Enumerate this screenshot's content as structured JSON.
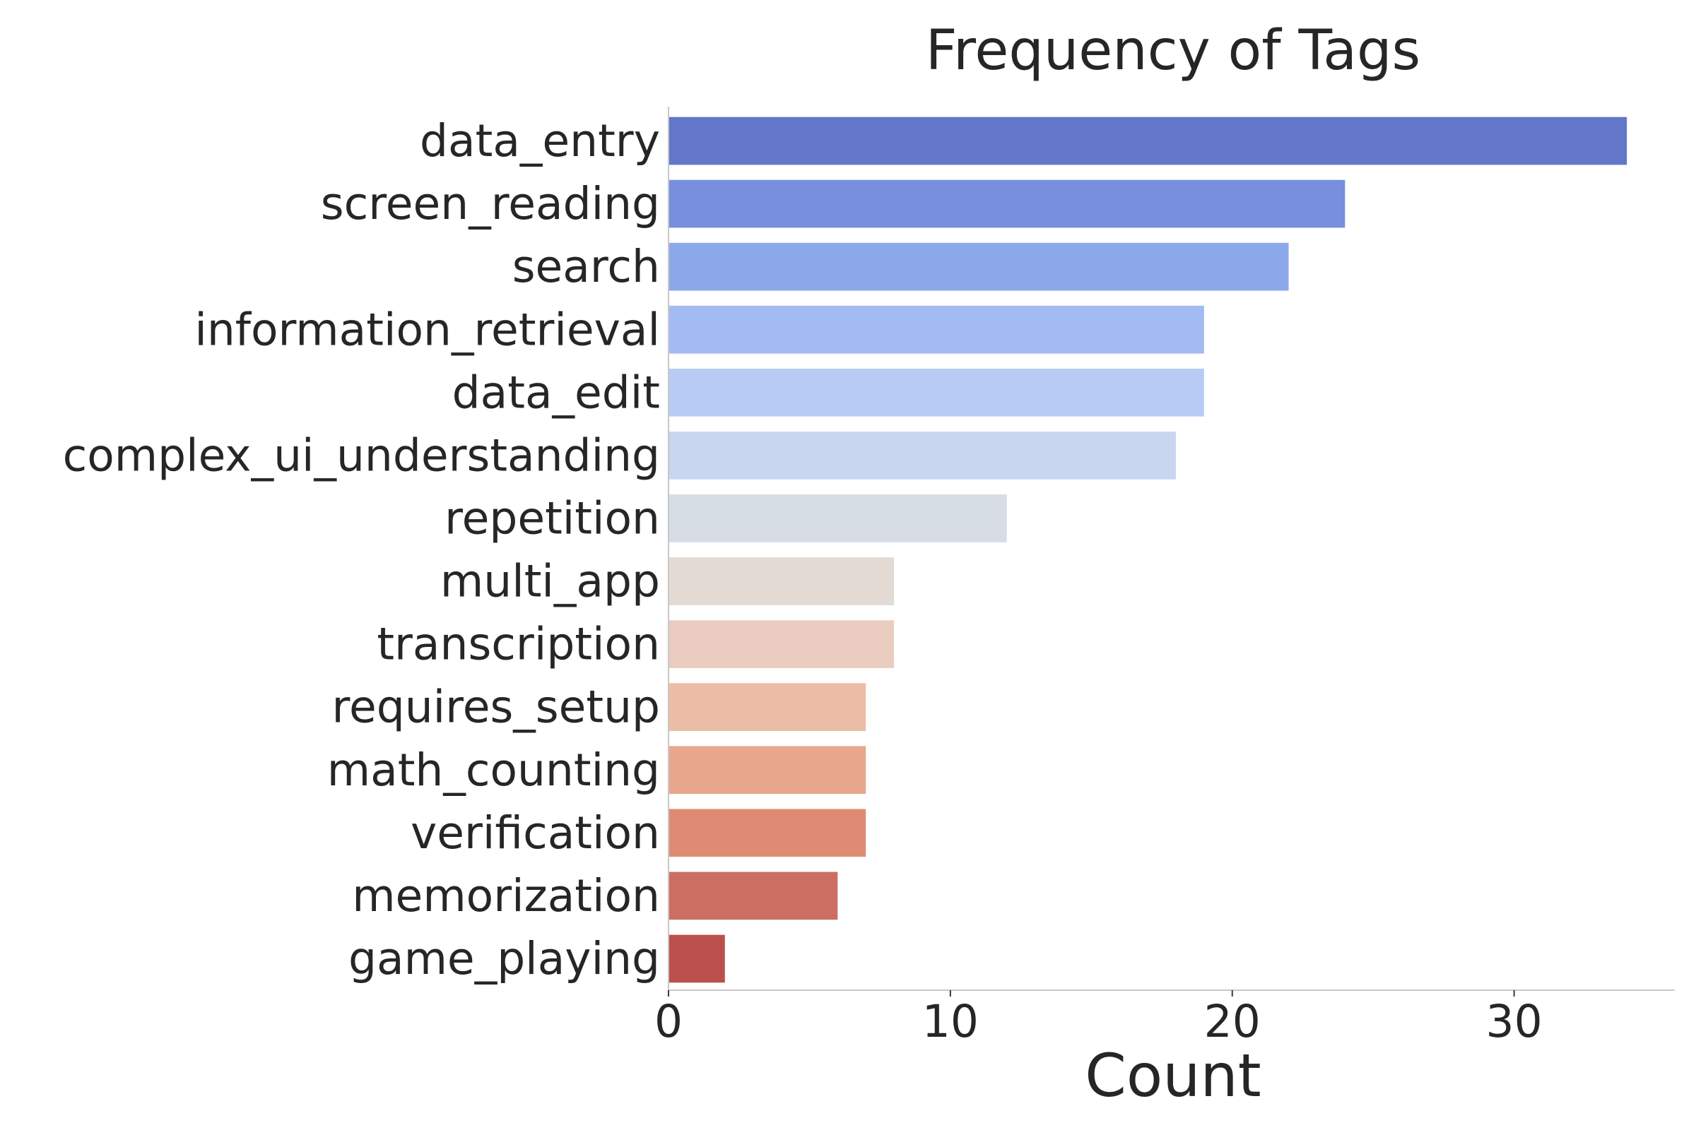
{
  "chart_data": {
    "type": "bar",
    "orientation": "horizontal",
    "title": "Frequency of Tags",
    "xlabel": "Count",
    "ylabel": "",
    "categories": [
      "data_entry",
      "screen_reading",
      "search",
      "information_retrieval",
      "data_edit",
      "complex_ui_understanding",
      "repetition",
      "multi_app",
      "transcription",
      "requires_setup",
      "math_counting",
      "verification",
      "memorization",
      "game_playing"
    ],
    "values": [
      34,
      24,
      22,
      19,
      19,
      18,
      12,
      8,
      8,
      7,
      7,
      7,
      6,
      2
    ],
    "colors": [
      "#6277c9",
      "#778fdc",
      "#8ba8ea",
      "#a2bcf2",
      "#b7cbf4",
      "#c9d6ef",
      "#d7dde5",
      "#e3dad4",
      "#eacdc0",
      "#ecbda6",
      "#e8a68d",
      "#de8b74",
      "#cd6e62",
      "#bb4f4c"
    ],
    "xlim": [
      0,
      35.7
    ],
    "xticks": [
      0,
      10,
      20,
      30
    ],
    "grid": false
  }
}
